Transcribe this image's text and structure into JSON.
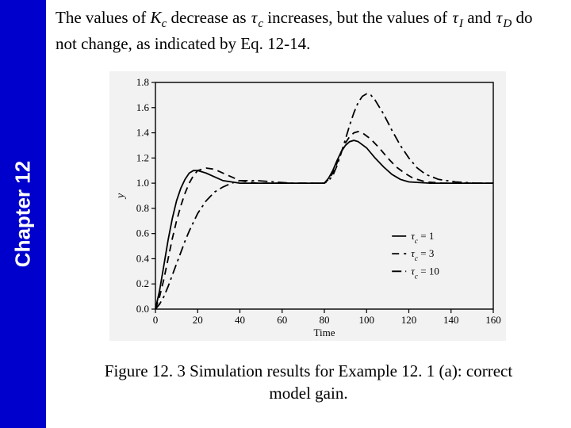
{
  "sidebar": {
    "label": "Chapter 12"
  },
  "paragraph": {
    "seg1": "The values of ",
    "kc_k": "K",
    "kc_sub": "c",
    "seg2": " decrease as ",
    "tau_c": "τ",
    "tau_c_sub": "c",
    "seg3": " increases, but the values of ",
    "tau_i": "τ",
    "tau_i_sub": "I",
    "seg4": " and ",
    "tau_d": "τ",
    "tau_d_sub": "D",
    "seg5": " do not change, as indicated by Eq. 12-14."
  },
  "caption": {
    "line1": "Figure 12. 3 Simulation results for Example 12. 1 (a): correct",
    "line2": "model gain."
  },
  "chart": {
    "type": "line",
    "background_color": "#f2f2f2",
    "axis_color": "#000000",
    "grid_color": "#000000",
    "text_color": "#000000",
    "label_fontsize": 13,
    "title_fontsize": 13,
    "xlim": [
      0,
      160
    ],
    "ylim": [
      0,
      1.8
    ],
    "xtick_step": 20,
    "ytick_step": 0.2,
    "xlabel": "Time",
    "ylabel": "y",
    "line_width": 1.8,
    "line_color": "#000000",
    "series": [
      {
        "name": "tc=1",
        "dash": "solid",
        "legend": "τ_c = 1",
        "points": [
          [
            0,
            0
          ],
          [
            2,
            0.15
          ],
          [
            4,
            0.35
          ],
          [
            6,
            0.55
          ],
          [
            8,
            0.72
          ],
          [
            10,
            0.86
          ],
          [
            12,
            0.96
          ],
          [
            14,
            1.03
          ],
          [
            16,
            1.08
          ],
          [
            18,
            1.1
          ],
          [
            20,
            1.1
          ],
          [
            24,
            1.08
          ],
          [
            28,
            1.05
          ],
          [
            32,
            1.02
          ],
          [
            40,
            1.0
          ],
          [
            50,
            1.0
          ],
          [
            60,
            1.0
          ],
          [
            70,
            1.0
          ],
          [
            78,
            1.0
          ],
          [
            80,
            1.0
          ],
          [
            82,
            1.04
          ],
          [
            84,
            1.1
          ],
          [
            86,
            1.18
          ],
          [
            88,
            1.25
          ],
          [
            90,
            1.3
          ],
          [
            92,
            1.33
          ],
          [
            94,
            1.34
          ],
          [
            96,
            1.33
          ],
          [
            100,
            1.28
          ],
          [
            104,
            1.2
          ],
          [
            108,
            1.13
          ],
          [
            112,
            1.07
          ],
          [
            116,
            1.03
          ],
          [
            120,
            1.01
          ],
          [
            130,
            1.0
          ],
          [
            140,
            1.0
          ],
          [
            150,
            1.0
          ],
          [
            160,
            1.0
          ]
        ]
      },
      {
        "name": "tc=3",
        "dash": "dash",
        "legend": "τ_c = 3",
        "points": [
          [
            0,
            0
          ],
          [
            2,
            0.1
          ],
          [
            4,
            0.24
          ],
          [
            6,
            0.4
          ],
          [
            8,
            0.56
          ],
          [
            10,
            0.7
          ],
          [
            12,
            0.82
          ],
          [
            14,
            0.92
          ],
          [
            16,
            1.0
          ],
          [
            18,
            1.06
          ],
          [
            20,
            1.1
          ],
          [
            24,
            1.12
          ],
          [
            28,
            1.11
          ],
          [
            32,
            1.08
          ],
          [
            36,
            1.05
          ],
          [
            40,
            1.02
          ],
          [
            48,
            1.0
          ],
          [
            60,
            1.0
          ],
          [
            70,
            1.0
          ],
          [
            78,
            1.0
          ],
          [
            80,
            1.0
          ],
          [
            82,
            1.03
          ],
          [
            84,
            1.08
          ],
          [
            86,
            1.16
          ],
          [
            88,
            1.25
          ],
          [
            90,
            1.32
          ],
          [
            92,
            1.37
          ],
          [
            94,
            1.4
          ],
          [
            96,
            1.41
          ],
          [
            98,
            1.4
          ],
          [
            102,
            1.35
          ],
          [
            106,
            1.28
          ],
          [
            110,
            1.2
          ],
          [
            114,
            1.13
          ],
          [
            118,
            1.08
          ],
          [
            122,
            1.04
          ],
          [
            128,
            1.01
          ],
          [
            136,
            1.0
          ],
          [
            148,
            1.0
          ],
          [
            160,
            1.0
          ]
        ]
      },
      {
        "name": "tc=10",
        "dash": "dashdot",
        "legend": "τ_c = 10",
        "points": [
          [
            0,
            0
          ],
          [
            2,
            0.04
          ],
          [
            4,
            0.1
          ],
          [
            6,
            0.18
          ],
          [
            8,
            0.27
          ],
          [
            10,
            0.36
          ],
          [
            12,
            0.45
          ],
          [
            14,
            0.54
          ],
          [
            16,
            0.62
          ],
          [
            18,
            0.69
          ],
          [
            20,
            0.76
          ],
          [
            24,
            0.86
          ],
          [
            28,
            0.93
          ],
          [
            32,
            0.97
          ],
          [
            36,
            1.0
          ],
          [
            40,
            1.02
          ],
          [
            48,
            1.02
          ],
          [
            56,
            1.01
          ],
          [
            64,
            1.0
          ],
          [
            72,
            1.0
          ],
          [
            78,
            1.0
          ],
          [
            80,
            1.0
          ],
          [
            82,
            1.02
          ],
          [
            84,
            1.06
          ],
          [
            86,
            1.14
          ],
          [
            88,
            1.24
          ],
          [
            90,
            1.35
          ],
          [
            92,
            1.46
          ],
          [
            94,
            1.56
          ],
          [
            96,
            1.64
          ],
          [
            98,
            1.69
          ],
          [
            100,
            1.71
          ],
          [
            102,
            1.7
          ],
          [
            104,
            1.66
          ],
          [
            108,
            1.55
          ],
          [
            112,
            1.42
          ],
          [
            116,
            1.3
          ],
          [
            120,
            1.2
          ],
          [
            124,
            1.12
          ],
          [
            128,
            1.07
          ],
          [
            134,
            1.03
          ],
          [
            142,
            1.01
          ],
          [
            152,
            1.0
          ],
          [
            160,
            1.0
          ]
        ]
      }
    ],
    "legend": {
      "x": 112,
      "y_start": 0.58,
      "gap": 0.14,
      "line_len": 18
    }
  }
}
